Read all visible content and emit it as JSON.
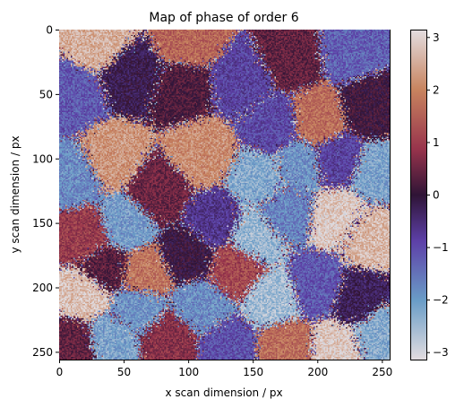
{
  "chart_data": {
    "type": "heatmap",
    "title": "Map of phase of order 6",
    "xlabel": "x scan dimension / px",
    "ylabel": "y scan dimension / px",
    "xlim": [
      0,
      256
    ],
    "ylim": [
      256,
      0
    ],
    "x_ticks": [
      0,
      50,
      100,
      150,
      200,
      250
    ],
    "y_ticks": [
      0,
      50,
      100,
      150,
      200,
      250
    ],
    "colorbar": {
      "colormap": "twilight_shifted",
      "vmin": -3.14159,
      "vmax": 3.14159,
      "ticks": [
        3,
        2,
        1,
        0,
        -1,
        -2,
        -3
      ],
      "tick_labels": [
        "3",
        "2",
        "1",
        "0",
        "−1",
        "−2",
        "−3"
      ]
    },
    "colors": {
      "neg_pi": "#e3dde0",
      "neg_blue": "#6a9dc7",
      "neg_purple": "#5d40a8",
      "zero": "#2f1436",
      "pos_red": "#98344c",
      "pos_orange": "#c8845f",
      "pos_pi": "#e3dde0"
    },
    "grid_size": [
      256,
      256
    ],
    "domains": [
      {
        "x": 30,
        "y": 10,
        "phase": 2.6
      },
      {
        "x": 55,
        "y": 35,
        "phase": -0.2
      },
      {
        "x": 10,
        "y": 50,
        "phase": -1.3
      },
      {
        "x": 100,
        "y": 8,
        "phase": 1.7
      },
      {
        "x": 95,
        "y": 45,
        "phase": 0.3
      },
      {
        "x": 140,
        "y": 40,
        "phase": -1.0
      },
      {
        "x": 180,
        "y": 20,
        "phase": 0.5
      },
      {
        "x": 225,
        "y": 15,
        "phase": -1.4
      },
      {
        "x": 240,
        "y": 60,
        "phase": 0.1
      },
      {
        "x": 200,
        "y": 70,
        "phase": 1.8
      },
      {
        "x": 165,
        "y": 75,
        "phase": -1.1
      },
      {
        "x": 110,
        "y": 95,
        "phase": 2.2
      },
      {
        "x": 40,
        "y": 100,
        "phase": 2.3
      },
      {
        "x": 10,
        "y": 115,
        "phase": -1.9
      },
      {
        "x": 75,
        "y": 125,
        "phase": 0.6
      },
      {
        "x": 155,
        "y": 115,
        "phase": -2.3
      },
      {
        "x": 185,
        "y": 105,
        "phase": -2.0
      },
      {
        "x": 215,
        "y": 100,
        "phase": -1.0
      },
      {
        "x": 245,
        "y": 110,
        "phase": -2.2
      },
      {
        "x": 50,
        "y": 150,
        "phase": -2.1
      },
      {
        "x": 20,
        "y": 160,
        "phase": 1.1
      },
      {
        "x": 120,
        "y": 150,
        "phase": -0.8
      },
      {
        "x": 150,
        "y": 160,
        "phase": -2.5
      },
      {
        "x": 175,
        "y": 140,
        "phase": -1.8
      },
      {
        "x": 215,
        "y": 145,
        "phase": 2.9
      },
      {
        "x": 240,
        "y": 160,
        "phase": 2.7
      },
      {
        "x": 100,
        "y": 175,
        "phase": 0.0
      },
      {
        "x": 135,
        "y": 185,
        "phase": 1.3
      },
      {
        "x": 65,
        "y": 190,
        "phase": 1.9
      },
      {
        "x": 35,
        "y": 185,
        "phase": 0.4
      },
      {
        "x": 20,
        "y": 205,
        "phase": 2.8
      },
      {
        "x": 60,
        "y": 215,
        "phase": -2.0
      },
      {
        "x": 110,
        "y": 215,
        "phase": -1.9
      },
      {
        "x": 165,
        "y": 210,
        "phase": -2.6
      },
      {
        "x": 200,
        "y": 200,
        "phase": -1.3
      },
      {
        "x": 230,
        "y": 210,
        "phase": -0.3
      },
      {
        "x": 245,
        "y": 235,
        "phase": -2.3
      },
      {
        "x": 215,
        "y": 245,
        "phase": 2.9
      },
      {
        "x": 175,
        "y": 245,
        "phase": 1.8
      },
      {
        "x": 130,
        "y": 245,
        "phase": -1.2
      },
      {
        "x": 85,
        "y": 240,
        "phase": 0.9
      },
      {
        "x": 40,
        "y": 240,
        "phase": -2.2
      },
      {
        "x": 10,
        "y": 245,
        "phase": 0.5
      }
    ]
  }
}
